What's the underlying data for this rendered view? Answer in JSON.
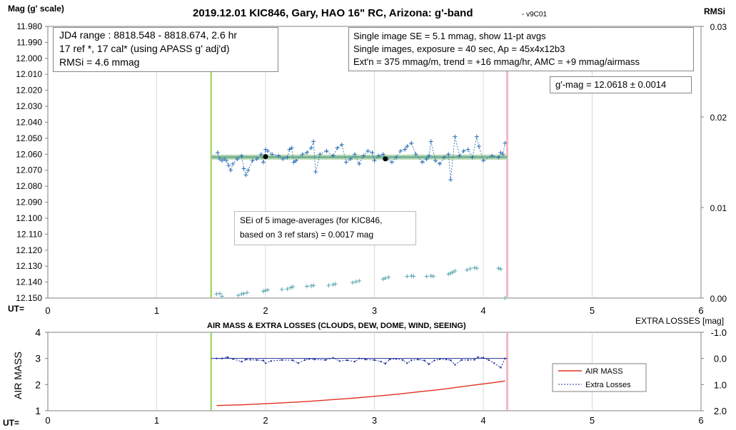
{
  "title": "2019.12.01 KIC846, Gary, HAO 16\" RC, Arizona: g'-band",
  "version": "- v9C01",
  "top_left_axis_label": "Mag (g' scale)",
  "top_right_axis_label": "RMSi",
  "ut_label": "UT=",
  "extra_losses_label": "EXTRA LOSSES [mag]",
  "bottom_title": "AIR MASS & EXTRA LOSSES (CLOUDS, DEW, DOME, WIND, SEEING)",
  "bottom_left_axis_label": "AIR MASS",
  "box1": {
    "line1": "JD4 range : 8818.548 - 8818.674,  2.6  hr",
    "line2": "17 ref *, 17 cal* (using APASS g' adj'd)",
    "line3": "RMSi = 4.6 mmag"
  },
  "box2": {
    "line1": "Single image SE = 5.1 mmag, show  11-pt avgs",
    "line2": "Single images, exposure = 40 sec, Ap = 45x4x12b3",
    "line3": "Ext'n = 375 mmag/m, trend =  +16 mmag/hr, AMC = +9 mmag/airmass"
  },
  "box3": {
    "line1": "g'-mag = 12.0618 ± 0.0014"
  },
  "box4": {
    "line1": "SEi of 5 image-averages (for KIC846,",
    "line2": "based on 3 ref stars) = 0.0017 mag"
  },
  "legend": {
    "air_mass": "AIR MASS",
    "extra_losses": "Extra Losses"
  },
  "colors": {
    "mag_points": "#2e6fb5",
    "rmsi_points": "#5aa6b0",
    "avg_line": "#6fae95",
    "start_marker": "#92d050",
    "end_marker": "#f4b6c2",
    "air_mass": "#e03020",
    "extra_losses": "#1f2f9a",
    "grid": "#d9d9d9"
  },
  "chart_data": [
    {
      "type": "scatter",
      "xlabel": "UT",
      "ylabel": "Mag (g' scale)",
      "y2label": "RMSi",
      "xlim": [
        0,
        6
      ],
      "ylim": [
        12.15,
        11.98
      ],
      "y2lim": [
        0,
        0.03
      ],
      "x_ticks": [
        "0",
        "1",
        "2",
        "3",
        "4",
        "5",
        "6"
      ],
      "y_ticks": [
        "11.980",
        "11.990",
        "12.000",
        "12.010",
        "12.020",
        "12.030",
        "12.040",
        "12.050",
        "12.060",
        "12.070",
        "12.080",
        "12.090",
        "12.100",
        "12.110",
        "12.120",
        "12.130",
        "12.140",
        "12.150"
      ],
      "y2_ticks": [
        "0.00",
        "0.01",
        "0.02",
        "0.03"
      ],
      "grid": "x-major only",
      "start_ut": 1.5,
      "end_ut": 4.22,
      "mean_mag": 12.0618,
      "series": [
        {
          "x": [
            1.56,
            1.58,
            1.6,
            1.62,
            1.64,
            1.66,
            1.68,
            1.7,
            1.74,
            1.78,
            1.8,
            1.82,
            1.84,
            1.88,
            1.92,
            1.96,
            1.98,
            2.0,
            2.02,
            2.06,
            2.12,
            2.16,
            2.2,
            2.22,
            2.24,
            2.26,
            2.28,
            2.34,
            2.38,
            2.42,
            2.44,
            2.46,
            2.5,
            2.56,
            2.62,
            2.66,
            2.7,
            2.74,
            2.78,
            2.82,
            2.86,
            2.9,
            2.94,
            2.98,
            3.0,
            3.04,
            3.08,
            3.12,
            3.16,
            3.2,
            3.24,
            3.28,
            3.3,
            3.34,
            3.38,
            3.44,
            3.48,
            3.5,
            3.52,
            3.56,
            3.6,
            3.64,
            3.68,
            3.7,
            3.74,
            3.78,
            3.82,
            3.86,
            3.9,
            3.94,
            3.96,
            4.0,
            4.08,
            4.14,
            4.16,
            4.18,
            4.2
          ],
          "values": [
            12.059,
            12.063,
            12.064,
            12.063,
            12.064,
            12.067,
            12.07,
            12.066,
            12.063,
            12.061,
            12.069,
            12.073,
            12.07,
            12.064,
            12.063,
            12.06,
            12.065,
            12.057,
            12.058,
            12.06,
            12.061,
            12.063,
            12.062,
            12.057,
            12.056,
            12.065,
            12.064,
            12.06,
            12.059,
            12.056,
            12.052,
            12.071,
            12.06,
            12.058,
            12.061,
            12.056,
            12.054,
            12.065,
            12.063,
            12.06,
            12.066,
            12.061,
            12.058,
            12.059,
            12.064,
            12.061,
            12.06,
            12.063,
            12.065,
            12.062,
            12.058,
            12.057,
            12.055,
            12.053,
            12.06,
            12.065,
            12.063,
            12.061,
            12.052,
            12.064,
            12.066,
            12.062,
            12.06,
            12.076,
            12.049,
            12.061,
            12.058,
            12.057,
            12.062,
            12.049,
            12.055,
            12.064,
            12.061,
            12.062,
            12.059,
            12.06,
            12.053
          ]
        },
        {
          "name": "5-image averages",
          "x": [
            2.0,
            3.1
          ],
          "values": [
            12.0615,
            12.0629
          ]
        },
        {
          "x": [
            1.55,
            1.58,
            1.6,
            1.75,
            1.78,
            1.8,
            1.83,
            1.98,
            2.0,
            2.02,
            2.15,
            2.2,
            2.23,
            2.25,
            2.38,
            2.42,
            2.44,
            2.58,
            2.62,
            2.64,
            2.8,
            2.83,
            2.86,
            3.08,
            3.1,
            3.13,
            3.3,
            3.34,
            3.36,
            3.48,
            3.52,
            3.54,
            3.68,
            3.7,
            3.72,
            3.74,
            3.85,
            3.88,
            3.92,
            3.94,
            4.14,
            4.16,
            4.2
          ],
          "y2": [
            0.00045,
            0.0005,
            0.0002,
            0.0003,
            0.00045,
            0.0005,
            0.0006,
            0.00075,
            0.00085,
            0.0009,
            0.00095,
            0.001,
            0.00115,
            0.00125,
            0.0013,
            0.00135,
            0.0014,
            0.0014,
            0.0015,
            0.00155,
            0.0017,
            0.0018,
            0.0019,
            0.0021,
            0.0022,
            0.0023,
            0.0024,
            0.00245,
            0.0024,
            0.0024,
            0.00245,
            0.0024,
            0.00265,
            0.00275,
            0.00285,
            0.003,
            0.0031,
            0.00325,
            0.00335,
            0.0033,
            0.0033,
            0.0032,
            0.0
          ]
        }
      ]
    },
    {
      "type": "line",
      "title": "AIR MASS & EXTRA LOSSES (CLOUDS, DEW, DOME, WIND, SEEING)",
      "xlabel": "UT",
      "ylabel": "AIR MASS",
      "y2label": "EXTRA LOSSES [mag]",
      "xlim": [
        0,
        6
      ],
      "ylim": [
        1,
        4
      ],
      "y2lim": [
        2.0,
        -1.0
      ],
      "x_ticks": [
        "0",
        "1",
        "2",
        "3",
        "4",
        "5",
        "6"
      ],
      "y_ticks": [
        "1",
        "2",
        "3",
        "4"
      ],
      "y2_ticks": [
        "-1.0",
        "0.0",
        "1.0",
        "2.0"
      ],
      "series": [
        {
          "name": "AIR MASS",
          "x": [
            1.55,
            1.8,
            2.0,
            2.2,
            2.4,
            2.6,
            2.8,
            3.0,
            3.2,
            3.4,
            3.6,
            3.8,
            3.95,
            4.1,
            4.2
          ],
          "values": [
            1.2,
            1.23,
            1.27,
            1.31,
            1.36,
            1.42,
            1.48,
            1.55,
            1.63,
            1.72,
            1.81,
            1.92,
            2.0,
            2.08,
            2.14
          ]
        },
        {
          "name": "Extra Losses",
          "x": [
            1.55,
            1.6,
            1.65,
            1.7,
            1.78,
            1.82,
            1.86,
            1.92,
            1.98,
            2.0,
            2.05,
            2.15,
            2.25,
            2.3,
            2.36,
            2.4,
            2.45,
            2.55,
            2.62,
            2.68,
            2.75,
            2.82,
            2.86,
            2.92,
            3.0,
            3.06,
            3.1,
            3.14,
            3.2,
            3.26,
            3.3,
            3.34,
            3.4,
            3.46,
            3.5,
            3.55,
            3.6,
            3.66,
            3.7,
            3.74,
            3.8,
            3.86,
            3.92,
            3.95,
            4.0,
            4.05,
            4.1,
            4.16,
            4.2
          ],
          "values": [
            0.0,
            0.0,
            -0.05,
            0.02,
            0.12,
            0.04,
            0.05,
            0.06,
            0.08,
            0.18,
            0.1,
            0.06,
            0.07,
            0.18,
            0.06,
            0.02,
            0.04,
            0.06,
            -0.02,
            0.1,
            0.07,
            0.12,
            0.0,
            0.04,
            0.06,
            0.12,
            0.2,
            0.04,
            0.02,
            0.06,
            0.18,
            0.07,
            0.04,
            0.08,
            0.22,
            0.08,
            0.03,
            0.04,
            0.07,
            0.24,
            0.06,
            0.06,
            0.05,
            -0.05,
            -0.03,
            0.06,
            0.18,
            0.35,
            0.0
          ]
        }
      ]
    }
  ]
}
